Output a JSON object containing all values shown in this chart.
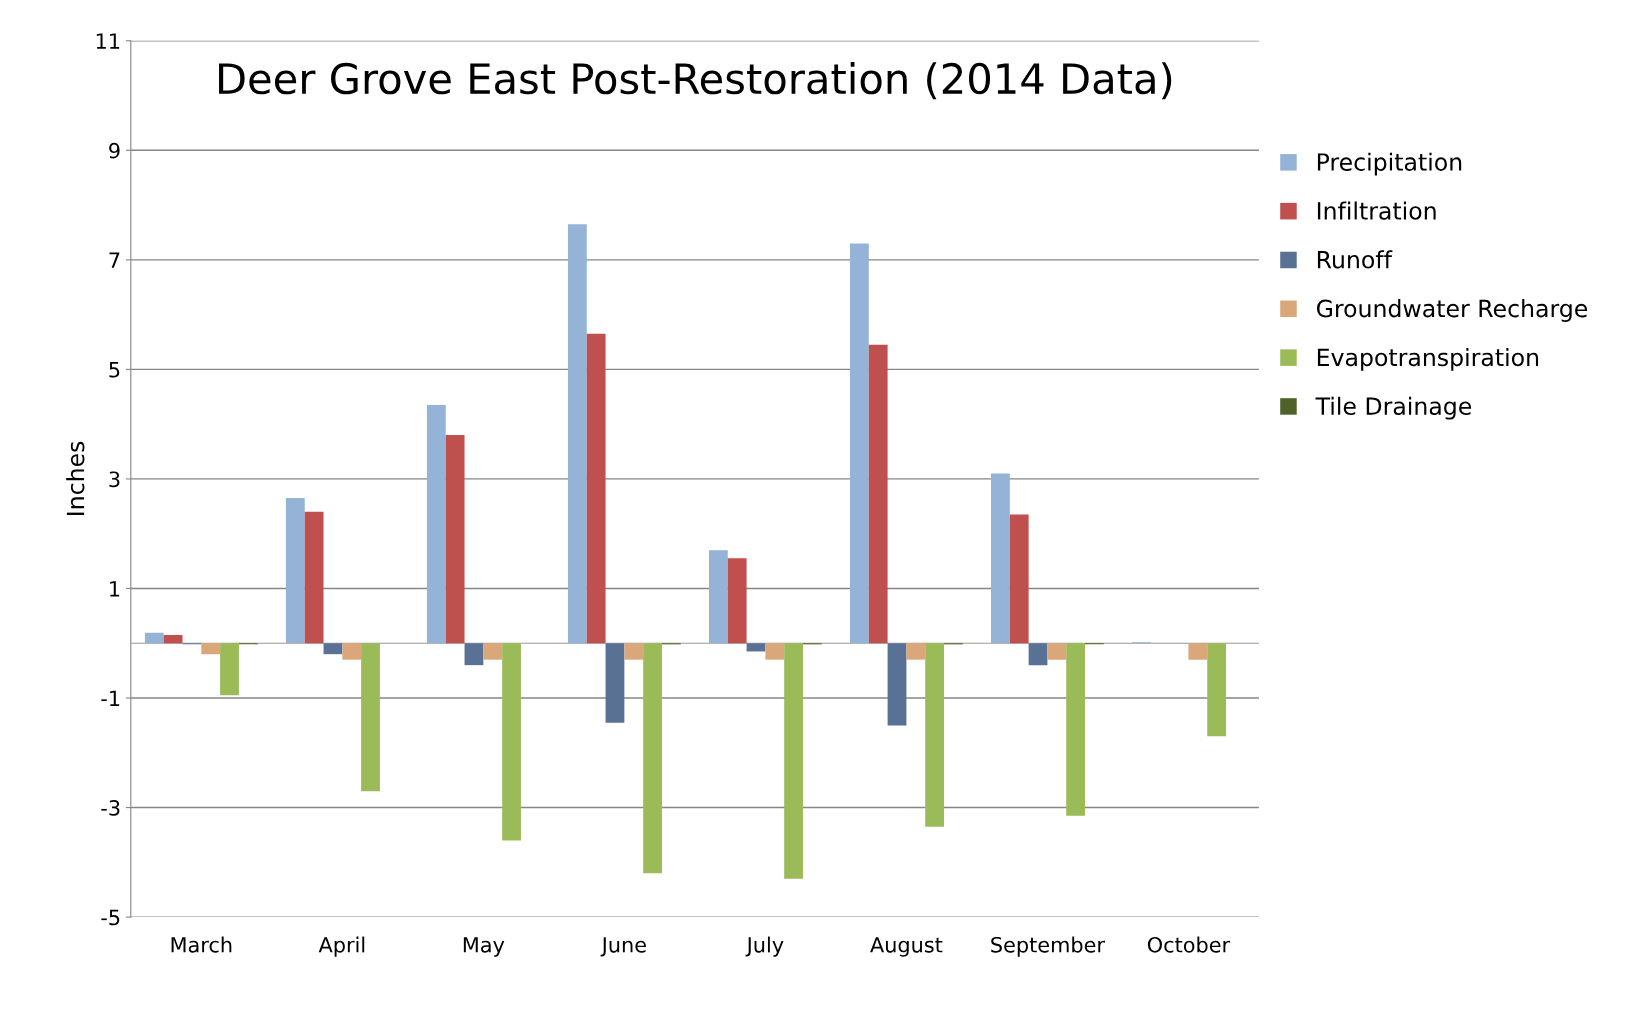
{
  "chart_data": {
    "type": "bar",
    "title": "Deer Grove East Post-Restoration (2014 Data)",
    "ylabel": "Inches",
    "categories": [
      "March",
      "April",
      "May",
      "June",
      "July",
      "August",
      "September",
      "October"
    ],
    "series": [
      {
        "name": "Precipitation",
        "color": "#95b3d7",
        "values": [
          0.19,
          2.65,
          4.35,
          7.65,
          1.7,
          7.3,
          3.1,
          0.02
        ]
      },
      {
        "name": "Infiltration",
        "color": "#c0504d",
        "values": [
          0.15,
          2.4,
          3.8,
          5.65,
          1.55,
          5.45,
          2.35,
          0.0
        ]
      },
      {
        "name": "Runoff",
        "color": "#5a7196",
        "values": [
          -0.02,
          -0.2,
          -0.4,
          -1.45,
          -0.15,
          -1.5,
          -0.4,
          0.0
        ]
      },
      {
        "name": "Groundwater Recharge",
        "color": "#d9a77a",
        "values": [
          -0.2,
          -0.3,
          -0.3,
          -0.3,
          -0.3,
          -0.3,
          -0.3,
          -0.3
        ]
      },
      {
        "name": "Evapotranspiration",
        "color": "#9bbb59",
        "values": [
          -0.95,
          -2.7,
          -3.6,
          -4.2,
          -4.3,
          -3.35,
          -3.15,
          -1.7
        ]
      },
      {
        "name": "Tile Drainage",
        "color": "#4f6228",
        "values": [
          -0.02,
          0.0,
          0.0,
          -0.02,
          -0.02,
          -0.02,
          -0.02,
          0.0
        ]
      }
    ],
    "ylim": [
      -5,
      11
    ],
    "yticks": [
      -5,
      -3,
      -1,
      1,
      3,
      5,
      7,
      9,
      11
    ],
    "grid": "y",
    "legend": "right"
  }
}
